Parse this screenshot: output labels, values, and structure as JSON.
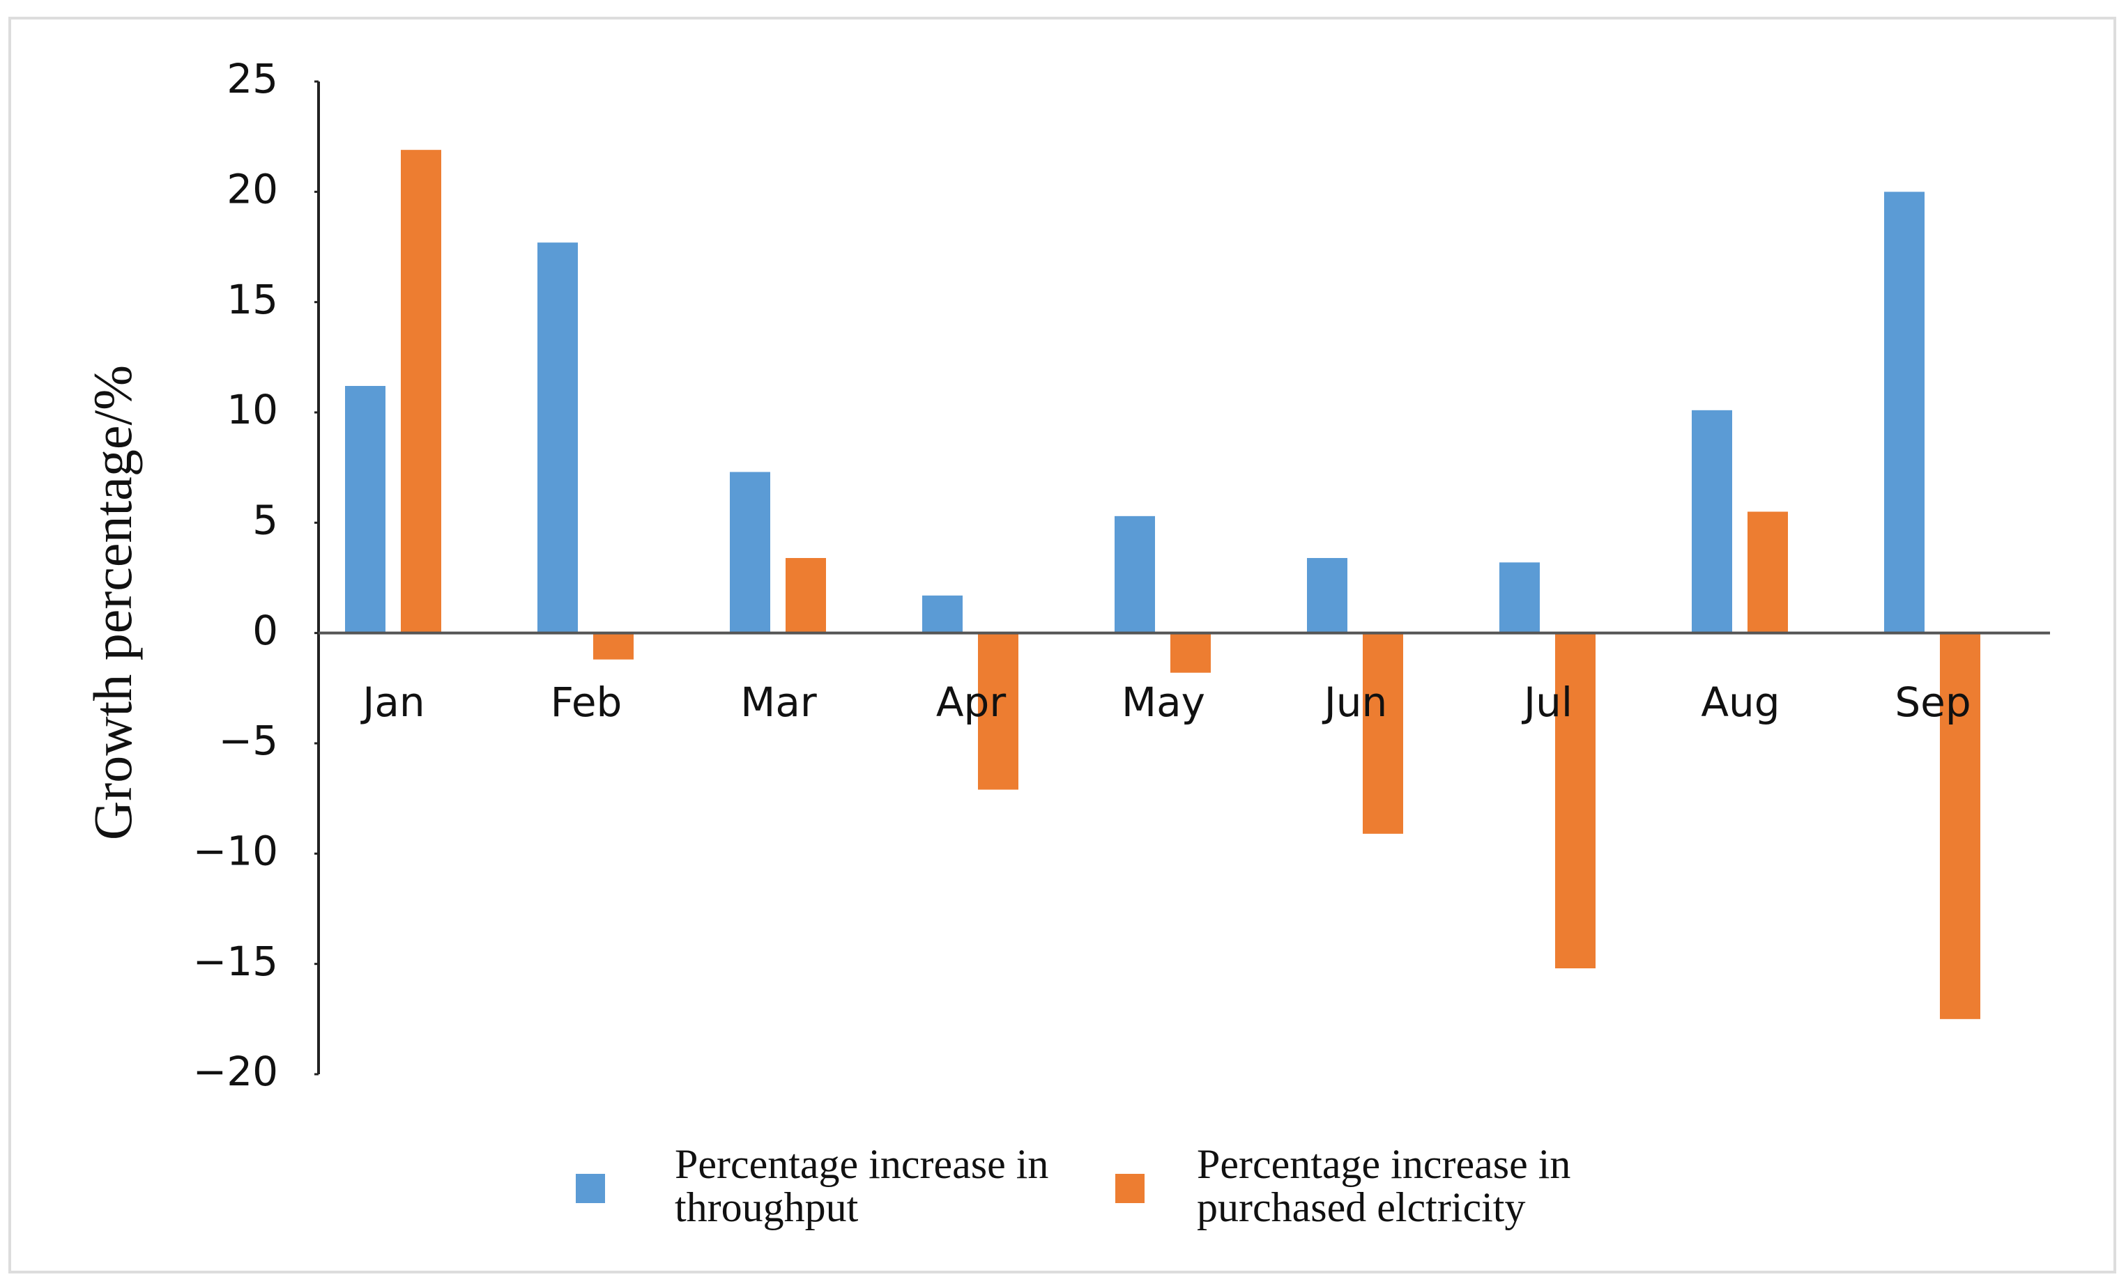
{
  "chart_data": {
    "type": "bar",
    "y_label": "Growth percentage/%",
    "categories": [
      "Jan",
      "Feb",
      "Mar",
      "Apr",
      "May",
      "Jun",
      "Jul",
      "Aug",
      "Sep"
    ],
    "series": [
      {
        "name": "Percentage increase in throughput",
        "color": "#5b9bd5",
        "values": [
          11.2,
          17.7,
          7.3,
          1.7,
          5.3,
          3.4,
          3.2,
          10.1,
          20.0
        ]
      },
      {
        "name": "Percentage increase in purchased elctricity",
        "color": "#ed7d31",
        "values": [
          21.9,
          -1.2,
          3.4,
          -7.1,
          -1.8,
          -9.1,
          -15.2,
          5.5,
          -17.5
        ]
      }
    ],
    "ylim": [
      -20,
      25
    ],
    "yticks": [
      {
        "value": -20,
        "label": "−20"
      },
      {
        "value": -15,
        "label": "−15"
      },
      {
        "value": -10,
        "label": "−10"
      },
      {
        "value": -5,
        "label": "−5"
      },
      0,
      5,
      10,
      15,
      20,
      25
    ],
    "grid": false,
    "legend": "bottom"
  }
}
